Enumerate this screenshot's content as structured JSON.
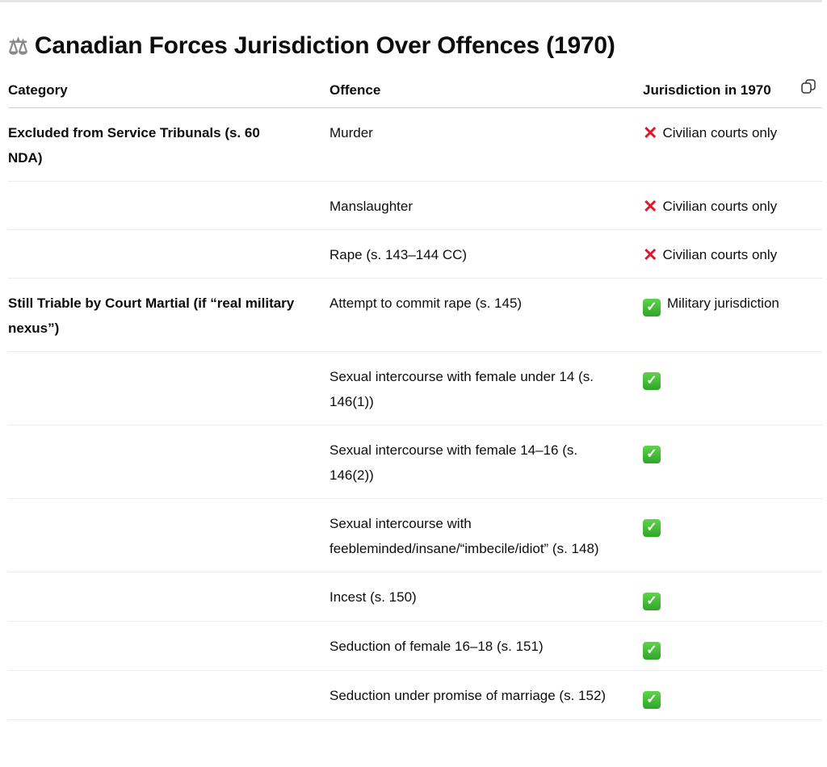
{
  "title": "Canadian Forces Jurisdiction Over Offences (1970)",
  "title_icon": "balance-scale-icon",
  "headers": [
    "Category",
    "Offence",
    "Jurisdiction in 1970"
  ],
  "rows": [
    {
      "category": "Excluded from Service Tribunals (s. 60 NDA)",
      "offence": "Murder",
      "status": "x",
      "jurisdiction": "Civilian courts only"
    },
    {
      "category": "",
      "offence": "Manslaughter",
      "status": "x",
      "jurisdiction": "Civilian courts only"
    },
    {
      "category": "",
      "offence": "Rape (s. 143–144 CC)",
      "status": "x",
      "jurisdiction": "Civilian courts only"
    },
    {
      "category": "Still Triable by Court Martial (if “real military nexus”)",
      "offence": "Attempt to commit rape (s. 145)",
      "status": "check",
      "jurisdiction": "Military jurisdiction"
    },
    {
      "category": "",
      "offence": "Sexual intercourse with female under 14 (s. 146(1))",
      "status": "check",
      "jurisdiction": ""
    },
    {
      "category": "",
      "offence": "Sexual intercourse with female 14–16 (s. 146(2))",
      "status": "check",
      "jurisdiction": ""
    },
    {
      "category": "",
      "offence": "Sexual intercourse with feebleminded/insane/“imbecile/idiot” (s. 148)",
      "status": "check",
      "jurisdiction": ""
    },
    {
      "category": "",
      "offence": "Incest (s. 150)",
      "status": "check",
      "jurisdiction": ""
    },
    {
      "category": "",
      "offence": "Seduction of female 16–18 (s. 151)",
      "status": "check",
      "jurisdiction": ""
    },
    {
      "category": "",
      "offence": "Seduction under promise of marriage (s. 152)",
      "status": "check",
      "jurisdiction": ""
    }
  ],
  "colors": {
    "x": "#e0162b",
    "check": "#2fa52a"
  }
}
